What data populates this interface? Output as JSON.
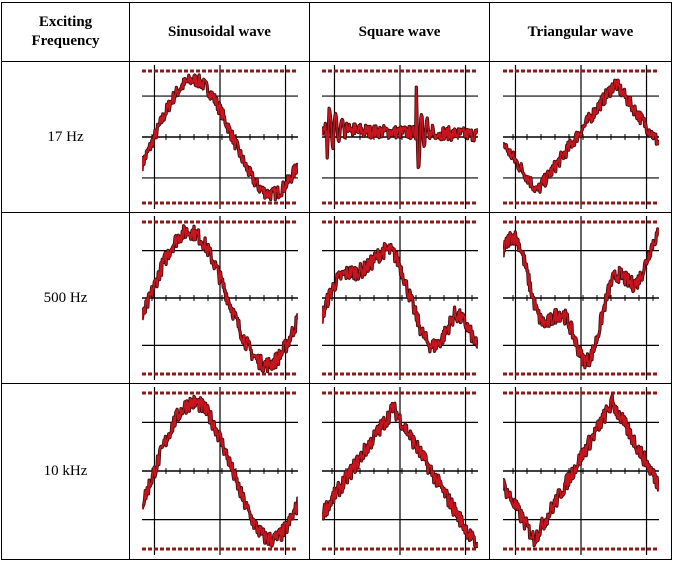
{
  "table": {
    "headers": {
      "frequency_line1": "Exciting",
      "frequency_line2": "Frequency",
      "sine": "Sinusoidal wave",
      "square": "Square wave",
      "triangle": "Triangular wave"
    },
    "rows": [
      {
        "frequency": "17 Hz"
      },
      {
        "frequency": "500 Hz"
      },
      {
        "frequency": "10 kHz"
      }
    ]
  },
  "colors": {
    "trace": "#c8141e",
    "trace_edge": "#3a0a0a",
    "grid": "#000000",
    "dash": "#8b1a1a"
  }
}
